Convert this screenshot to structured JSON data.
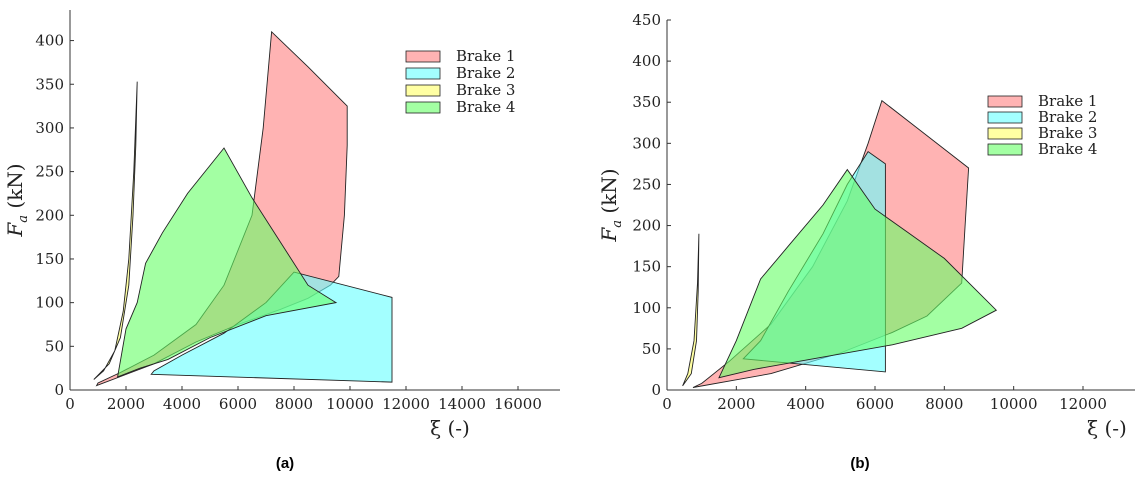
{
  "chart_data": [
    {
      "type": "area",
      "panel_label": "(a)",
      "xlabel": "ξ (-)",
      "ylabel": "F_a (kN)",
      "ylabel_main": "F",
      "ylabel_sub": "a",
      "ylabel_rest": " (kN)",
      "xlim": [
        0,
        17500
      ],
      "ylim": [
        0,
        435
      ],
      "xticks": [
        0,
        2000,
        4000,
        6000,
        8000,
        10000,
        12000,
        14000,
        16000
      ],
      "yticks": [
        0,
        50,
        100,
        150,
        200,
        250,
        300,
        350,
        400
      ],
      "legend_position": "top-right",
      "series": [
        {
          "name": "Brake 1",
          "color": "#ff8080",
          "polygon": [
            [
              950,
              5
            ],
            [
              3000,
              30
            ],
            [
              4500,
              55
            ],
            [
              6000,
              75
            ],
            [
              7500,
              92
            ],
            [
              8500,
              105
            ],
            [
              9300,
              120
            ],
            [
              9600,
              130
            ],
            [
              9800,
              200
            ],
            [
              9900,
              280
            ],
            [
              9900,
              325
            ],
            [
              8500,
              370
            ],
            [
              7200,
              410
            ],
            [
              6900,
              300
            ],
            [
              6500,
              200
            ],
            [
              5500,
              120
            ],
            [
              4500,
              75
            ],
            [
              3000,
              40
            ],
            [
              1800,
              20
            ],
            [
              1000,
              8
            ]
          ]
        },
        {
          "name": "Brake 2",
          "color": "#66ffff",
          "polygon": [
            [
              2900,
              18
            ],
            [
              11500,
              9
            ],
            [
              11500,
              106
            ],
            [
              8000,
              135
            ],
            [
              7000,
              100
            ],
            [
              5500,
              65
            ],
            [
              4000,
              40
            ],
            [
              3000,
              22
            ]
          ]
        },
        {
          "name": "Brake 3",
          "color": "#ffff66",
          "polygon": [
            [
              850,
              12
            ],
            [
              1400,
              30
            ],
            [
              1800,
              60
            ],
            [
              2100,
              120
            ],
            [
              2250,
              200
            ],
            [
              2350,
              280
            ],
            [
              2400,
              353
            ],
            [
              2280,
              250
            ],
            [
              2100,
              150
            ],
            [
              1900,
              90
            ],
            [
              1600,
              45
            ],
            [
              1200,
              22
            ]
          ]
        },
        {
          "name": "Brake 4",
          "color": "#66ff66",
          "polygon": [
            [
              1700,
              15
            ],
            [
              2000,
              70
            ],
            [
              2400,
              100
            ],
            [
              2700,
              145
            ],
            [
              3300,
              180
            ],
            [
              4200,
              225
            ],
            [
              5500,
              277
            ],
            [
              6500,
              220
            ],
            [
              7500,
              170
            ],
            [
              8500,
              120
            ],
            [
              9500,
              100
            ],
            [
              7000,
              85
            ],
            [
              5000,
              60
            ],
            [
              3500,
              35
            ],
            [
              2500,
              25
            ]
          ]
        }
      ]
    },
    {
      "type": "area",
      "panel_label": "(b)",
      "xlabel": "ξ (-)",
      "ylabel": "F_a (kN)",
      "ylabel_main": "F",
      "ylabel_sub": "a",
      "ylabel_rest": " (kN)",
      "xlim": [
        0,
        13500
      ],
      "ylim": [
        0,
        450
      ],
      "xticks": [
        0,
        2000,
        4000,
        6000,
        8000,
        10000,
        12000
      ],
      "yticks": [
        0,
        50,
        100,
        150,
        200,
        250,
        300,
        350,
        400,
        450
      ],
      "legend_position": "top-right",
      "series": [
        {
          "name": "Brake 1",
          "color": "#ff8080",
          "polygon": [
            [
              750,
              3
            ],
            [
              3000,
              20
            ],
            [
              5000,
              45
            ],
            [
              6500,
              70
            ],
            [
              7500,
              90
            ],
            [
              8500,
              130
            ],
            [
              8600,
              200
            ],
            [
              8700,
              270
            ],
            [
              6200,
              352
            ],
            [
              5800,
              300
            ],
            [
              5200,
              230
            ],
            [
              4200,
              150
            ],
            [
              3000,
              80
            ],
            [
              1800,
              35
            ],
            [
              1000,
              8
            ]
          ]
        },
        {
          "name": "Brake 2",
          "color": "#66ffff",
          "polygon": [
            [
              2200,
              38
            ],
            [
              6300,
              22
            ],
            [
              6300,
              275
            ],
            [
              5800,
              290
            ],
            [
              5200,
              250
            ],
            [
              4500,
              190
            ],
            [
              3500,
              120
            ],
            [
              2700,
              60
            ]
          ]
        },
        {
          "name": "Brake 3",
          "color": "#ffff66",
          "polygon": [
            [
              450,
              5
            ],
            [
              700,
              20
            ],
            [
              850,
              60
            ],
            [
              900,
              120
            ],
            [
              920,
              190
            ],
            [
              880,
              130
            ],
            [
              780,
              60
            ],
            [
              600,
              20
            ]
          ]
        },
        {
          "name": "Brake 4",
          "color": "#66ff66",
          "polygon": [
            [
              1500,
              15
            ],
            [
              2000,
              60
            ],
            [
              2700,
              135
            ],
            [
              3500,
              175
            ],
            [
              4500,
              225
            ],
            [
              5200,
              268
            ],
            [
              6000,
              220
            ],
            [
              7000,
              190
            ],
            [
              8000,
              160
            ],
            [
              9500,
              97
            ],
            [
              8500,
              75
            ],
            [
              6500,
              55
            ],
            [
              4500,
              40
            ],
            [
              2500,
              25
            ]
          ]
        }
      ]
    }
  ]
}
